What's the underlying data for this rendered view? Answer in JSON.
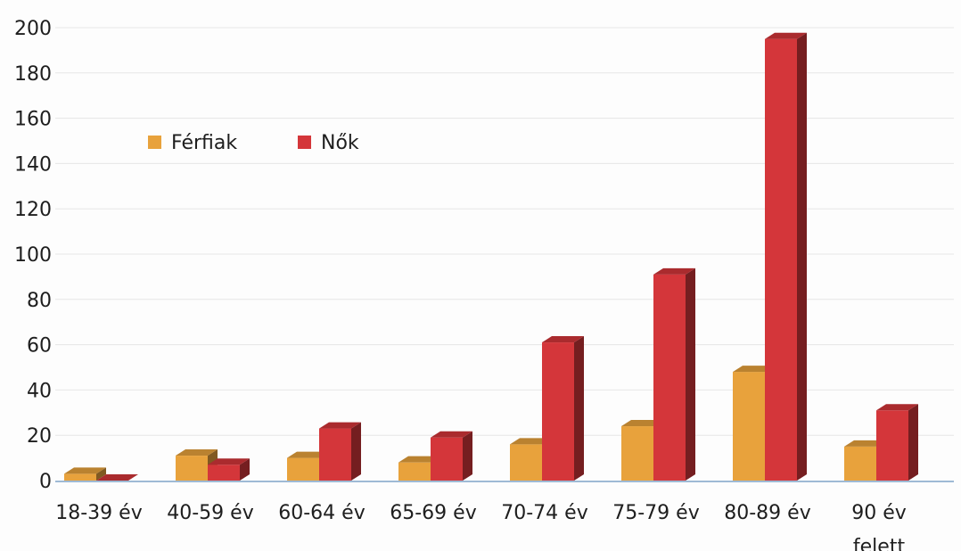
{
  "chart_data": {
    "type": "bar",
    "style": "3d-clustered-column",
    "categories": [
      [
        "18-39 év"
      ],
      [
        "40-59 év"
      ],
      [
        "60-64 év"
      ],
      [
        "65-69 év"
      ],
      [
        "70-74 év"
      ],
      [
        "75-79 év"
      ],
      [
        "80-89 év"
      ],
      [
        "90 év",
        "felett"
      ]
    ],
    "series": [
      {
        "name": "Férfiak",
        "color": "#e8a23c",
        "values": [
          3,
          11,
          10,
          8,
          16,
          24,
          48,
          15
        ]
      },
      {
        "name": "Nők",
        "color": "#d4363a",
        "values": [
          0,
          7,
          23,
          19,
          61,
          91,
          195,
          31
        ]
      }
    ],
    "ylim": [
      0,
      200
    ],
    "yticks": [
      0,
      20,
      40,
      60,
      80,
      100,
      120,
      140,
      160,
      180,
      200
    ],
    "grid": true,
    "legend_position": "top-left"
  }
}
